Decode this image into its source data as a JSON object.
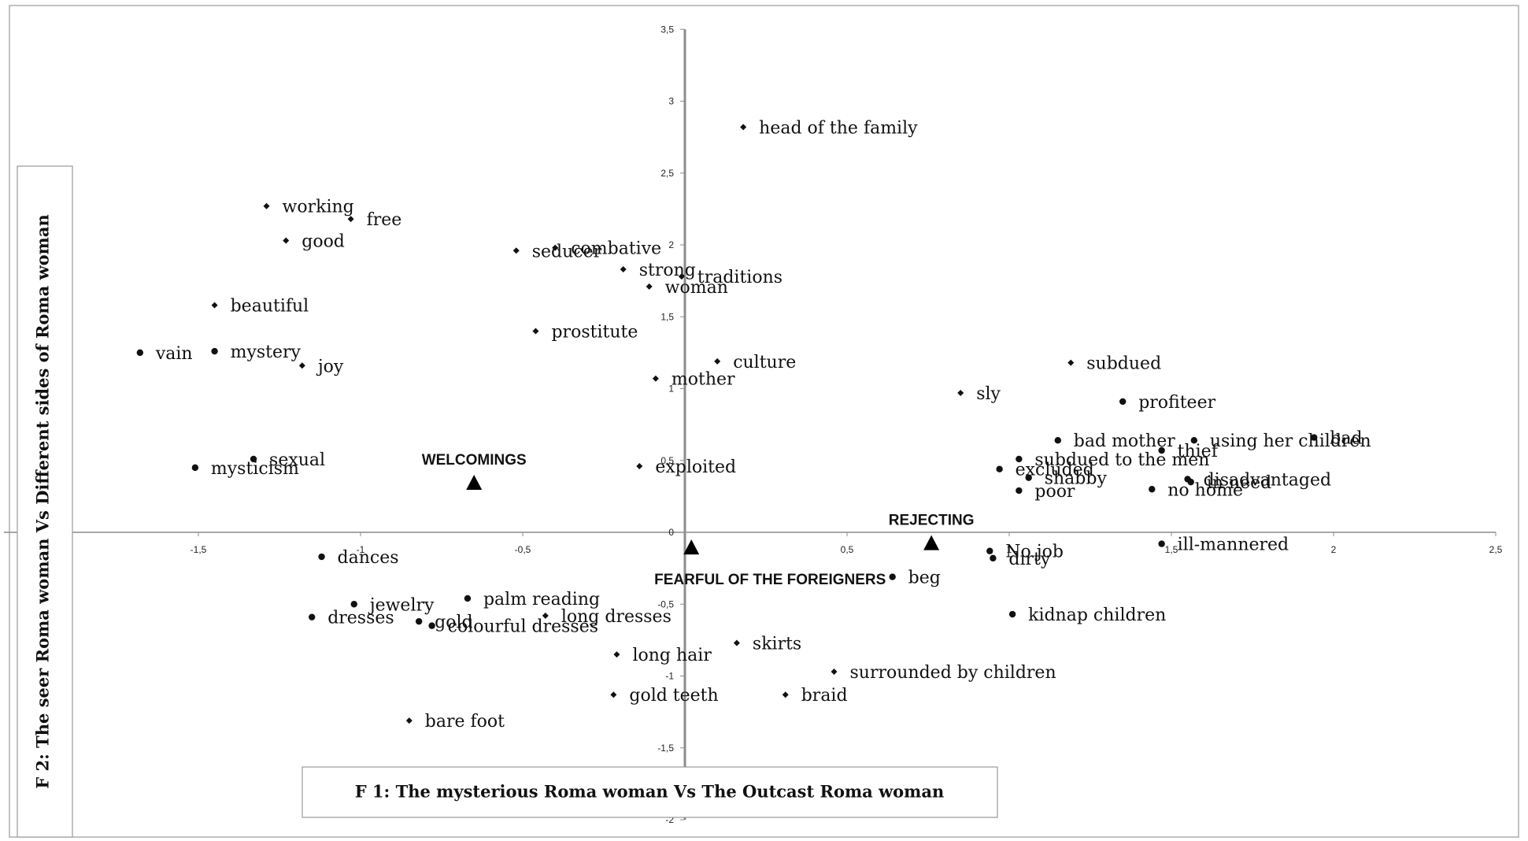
{
  "chart_data": {
    "type": "scatter",
    "xlabel": "F 1: The mysterious Roma woman Vs The Outcast Roma woman",
    "ylabel": "F 2: The seer Roma woman Vs Different sides of Roma woman",
    "xlim": [
      -2.1,
      2.5
    ],
    "ylim": [
      -2,
      3.5
    ],
    "x_ticks": [
      {
        "value": -1.5,
        "label": "-1,5"
      },
      {
        "value": -1,
        "label": "-1"
      },
      {
        "value": -0.5,
        "label": "-0,5"
      },
      {
        "value": 0,
        "label": "0"
      },
      {
        "value": 0.5,
        "label": "0,5"
      },
      {
        "value": 1,
        "label": "1"
      },
      {
        "value": 1.5,
        "label": "1,5"
      },
      {
        "value": 2,
        "label": "2"
      },
      {
        "value": 2.5,
        "label": "2,5"
      }
    ],
    "y_ticks": [
      {
        "value": -2,
        "label": "-2"
      },
      {
        "value": -1.5,
        "label": "-1,5"
      },
      {
        "value": -1,
        "label": "-1"
      },
      {
        "value": -0.5,
        "label": "-0,5"
      },
      {
        "value": 0,
        "label": "0"
      },
      {
        "value": 0.5,
        "label": "0,5"
      },
      {
        "value": 1,
        "label": "1"
      },
      {
        "value": 1.5,
        "label": "1,5"
      },
      {
        "value": 2,
        "label": "2"
      },
      {
        "value": 2.5,
        "label": "2,5"
      },
      {
        "value": 3,
        "label": "3"
      },
      {
        "value": 3.5,
        "label": "3,5"
      }
    ],
    "grid": false,
    "points": [
      {
        "label": "head of the family",
        "x": 0.18,
        "y": 2.82,
        "marker": "diamond"
      },
      {
        "label": "working",
        "x": -1.29,
        "y": 2.27,
        "marker": "diamond"
      },
      {
        "label": "free",
        "x": -1.03,
        "y": 2.18,
        "marker": "diamond"
      },
      {
        "label": "good",
        "x": -1.23,
        "y": 2.03,
        "marker": "diamond"
      },
      {
        "label": "combative",
        "x": -0.4,
        "y": 1.98,
        "marker": "diamond"
      },
      {
        "label": "seducer",
        "x": -0.52,
        "y": 1.96,
        "marker": "diamond"
      },
      {
        "label": "strong",
        "x": -0.19,
        "y": 1.83,
        "marker": "diamond"
      },
      {
        "label": "traditions",
        "x": -0.01,
        "y": 1.78,
        "marker": "diamond"
      },
      {
        "label": "woman",
        "x": -0.11,
        "y": 1.71,
        "marker": "diamond"
      },
      {
        "label": "beautiful",
        "x": -1.45,
        "y": 1.58,
        "marker": "diamond"
      },
      {
        "label": "prostitute",
        "x": -0.46,
        "y": 1.4,
        "marker": "diamond"
      },
      {
        "label": "vain",
        "x": -1.68,
        "y": 1.25,
        "marker": "dot"
      },
      {
        "label": "mystery",
        "x": -1.45,
        "y": 1.26,
        "marker": "dot"
      },
      {
        "label": "joy",
        "x": -1.18,
        "y": 1.16,
        "marker": "diamond"
      },
      {
        "label": "culture",
        "x": 0.1,
        "y": 1.19,
        "marker": "diamond"
      },
      {
        "label": "mother",
        "x": -0.09,
        "y": 1.07,
        "marker": "diamond"
      },
      {
        "label": "subdued",
        "x": 1.19,
        "y": 1.18,
        "marker": "diamond"
      },
      {
        "label": "sly",
        "x": 0.85,
        "y": 0.97,
        "marker": "diamond"
      },
      {
        "label": "profiteer",
        "x": 1.35,
        "y": 0.91,
        "marker": "dot"
      },
      {
        "label": "bad mother",
        "x": 1.15,
        "y": 0.64,
        "marker": "dot"
      },
      {
        "label": "using her children",
        "x": 1.57,
        "y": 0.64,
        "marker": "dot"
      },
      {
        "label": "bad",
        "x": 1.94,
        "y": 0.66,
        "marker": "dot"
      },
      {
        "label": "subdued to the men",
        "x": 1.03,
        "y": 0.51,
        "marker": "dot"
      },
      {
        "label": "thief",
        "x": 1.47,
        "y": 0.57,
        "marker": "dot"
      },
      {
        "label": "sexual",
        "x": -1.33,
        "y": 0.51,
        "marker": "dot"
      },
      {
        "label": "mysticism",
        "x": -1.51,
        "y": 0.45,
        "marker": "dot"
      },
      {
        "label": "exploited",
        "x": -0.14,
        "y": 0.46,
        "marker": "diamond"
      },
      {
        "label": "excluded",
        "x": 0.97,
        "y": 0.44,
        "marker": "dot"
      },
      {
        "label": "disadvantaged",
        "x": 1.55,
        "y": 0.37,
        "marker": "dot"
      },
      {
        "label": "shabby",
        "x": 1.06,
        "y": 0.38,
        "marker": "dot"
      },
      {
        "label": "in need",
        "x": 1.56,
        "y": 0.35,
        "marker": "dot"
      },
      {
        "label": "poor",
        "x": 1.03,
        "y": 0.29,
        "marker": "dot"
      },
      {
        "label": "no home",
        "x": 1.44,
        "y": 0.3,
        "marker": "dot"
      },
      {
        "label": "ill-mannered",
        "x": 1.47,
        "y": -0.08,
        "marker": "dot"
      },
      {
        "label": "No job",
        "x": 0.94,
        "y": -0.13,
        "marker": "dot"
      },
      {
        "label": "dirty",
        "x": 0.95,
        "y": -0.18,
        "marker": "dot"
      },
      {
        "label": "beg",
        "x": 0.64,
        "y": -0.31,
        "marker": "dot"
      },
      {
        "label": "dances",
        "x": -1.12,
        "y": -0.17,
        "marker": "dot"
      },
      {
        "label": "jewelry",
        "x": -1.02,
        "y": -0.5,
        "marker": "dot"
      },
      {
        "label": "palm reading",
        "x": -0.67,
        "y": -0.46,
        "marker": "dot"
      },
      {
        "label": "dresses",
        "x": -1.15,
        "y": -0.59,
        "marker": "dot"
      },
      {
        "label": "gold",
        "x": -0.82,
        "y": -0.62,
        "marker": "dot"
      },
      {
        "label": "colourful dresses",
        "x": -0.78,
        "y": -0.65,
        "marker": "dot"
      },
      {
        "label": "long dresses",
        "x": -0.43,
        "y": -0.58,
        "marker": "diamond"
      },
      {
        "label": "kidnap children",
        "x": 1.01,
        "y": -0.57,
        "marker": "dot"
      },
      {
        "label": "long hair",
        "x": -0.21,
        "y": -0.85,
        "marker": "diamond"
      },
      {
        "label": "skirts",
        "x": 0.16,
        "y": -0.77,
        "marker": "diamond"
      },
      {
        "label": "surrounded by children",
        "x": 0.46,
        "y": -0.97,
        "marker": "diamond"
      },
      {
        "label": "gold teeth",
        "x": -0.22,
        "y": -1.13,
        "marker": "diamond"
      },
      {
        "label": "braid",
        "x": 0.31,
        "y": -1.13,
        "marker": "diamond"
      },
      {
        "label": "bare foot",
        "x": -0.85,
        "y": -1.31,
        "marker": "diamond"
      }
    ],
    "group_points": [
      {
        "label": "WELCOMINGS",
        "x": -0.65,
        "y": 0.34
      },
      {
        "label": "FEARFUL OF THE FOREIGNERS",
        "x": 0.02,
        "y": -0.11
      },
      {
        "label": "REJECTING",
        "x": 0.76,
        "y": -0.08
      }
    ]
  }
}
